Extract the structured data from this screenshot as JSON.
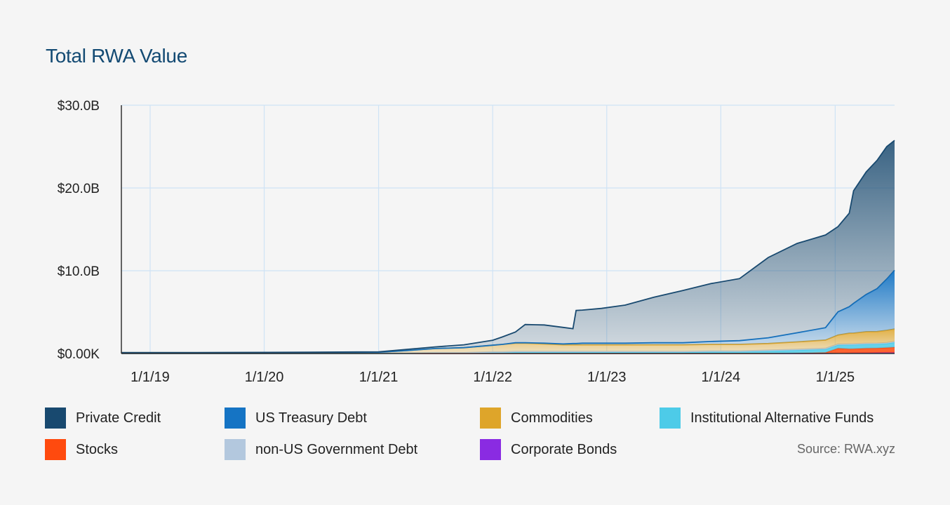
{
  "chart_data": {
    "type": "area",
    "stacked": true,
    "title": "Total RWA Value",
    "y_ticks": [
      "$0.00K",
      "$10.0B",
      "$20.0B",
      "$30.0B"
    ],
    "ylim": [
      0,
      30
    ],
    "y_unit": "B USD",
    "x_ticks": [
      "1/1/19",
      "1/1/20",
      "1/1/21",
      "1/1/22",
      "1/1/23",
      "1/1/24",
      "1/1/25"
    ],
    "xlim": [
      "2018-10-01",
      "2025-07-10"
    ],
    "grid": true,
    "legend_position": "bottom",
    "x": [
      "2018-10-01",
      "2019-06-01",
      "2020-06-01",
      "2021-01-01",
      "2021-04-01",
      "2021-07-01",
      "2021-10-01",
      "2022-01-01",
      "2022-02-01",
      "2022-03-15",
      "2022-04-15",
      "2022-06-15",
      "2022-08-15",
      "2022-09-15",
      "2022-09-25",
      "2022-10-15",
      "2022-12-15",
      "2023-03-01",
      "2023-06-01",
      "2023-09-01",
      "2023-12-01",
      "2024-03-01",
      "2024-06-01",
      "2024-09-01",
      "2024-12-01",
      "2025-01-10",
      "2025-02-15",
      "2025-03-01",
      "2025-04-10",
      "2025-05-15",
      "2025-06-15",
      "2025-07-10"
    ],
    "series": [
      {
        "name": "Corporate Bonds",
        "color": "#8a2be2",
        "values": [
          0,
          0,
          0,
          0,
          0,
          0,
          0,
          0,
          0,
          0,
          0,
          0,
          0,
          0,
          0,
          0,
          0,
          0,
          0,
          0,
          0,
          0,
          0,
          0,
          0.02,
          0.03,
          0.05,
          0.06,
          0.08,
          0.09,
          0.1,
          0.1
        ]
      },
      {
        "name": "Stocks",
        "color": "#ff4a0e",
        "values": [
          0,
          0,
          0,
          0,
          0,
          0,
          0,
          0,
          0,
          0,
          0,
          0,
          0,
          0,
          0,
          0,
          0,
          0,
          0,
          0,
          0,
          0,
          0,
          0.05,
          0.1,
          0.6,
          0.5,
          0.5,
          0.55,
          0.55,
          0.6,
          0.65
        ]
      },
      {
        "name": "Institutional Alternative Funds",
        "color": "#4dcbe8",
        "values": [
          0,
          0,
          0,
          0,
          0,
          0.05,
          0.05,
          0.1,
          0.1,
          0.15,
          0.15,
          0.15,
          0.15,
          0.15,
          0.15,
          0.15,
          0.15,
          0.15,
          0.15,
          0.15,
          0.2,
          0.2,
          0.3,
          0.35,
          0.4,
          0.4,
          0.5,
          0.5,
          0.5,
          0.5,
          0.5,
          0.6
        ]
      },
      {
        "name": "non-US Government Debt",
        "color": "#b3c8de",
        "values": [
          0.05,
          0.05,
          0.05,
          0.05,
          0.05,
          0.05,
          0.05,
          0.1,
          0.1,
          0.1,
          0.1,
          0.1,
          0.1,
          0.1,
          0.1,
          0.1,
          0.1,
          0.1,
          0.1,
          0.1,
          0.1,
          0.1,
          0.1,
          0.1,
          0.1,
          0.1,
          0.1,
          0.1,
          0.1,
          0.1,
          0.1,
          0.1
        ]
      },
      {
        "name": "Commodities",
        "color": "#dea52a",
        "values": [
          0.05,
          0.05,
          0.08,
          0.1,
          0.3,
          0.5,
          0.6,
          0.8,
          0.9,
          1.0,
          1.0,
          0.9,
          0.8,
          0.8,
          0.8,
          0.8,
          0.8,
          0.8,
          0.8,
          0.8,
          0.8,
          0.8,
          0.8,
          0.9,
          1.0,
          1.1,
          1.3,
          1.3,
          1.4,
          1.4,
          1.5,
          1.5
        ]
      },
      {
        "name": "US Treasury Debt",
        "color": "#1574c4",
        "values": [
          0,
          0,
          0,
          0,
          0,
          0,
          0,
          0,
          0,
          0.05,
          0.05,
          0.1,
          0.1,
          0.15,
          0.15,
          0.2,
          0.2,
          0.2,
          0.25,
          0.25,
          0.35,
          0.45,
          0.7,
          1.1,
          1.5,
          2.8,
          3.2,
          3.6,
          4.5,
          5.2,
          6.2,
          7.1
        ]
      },
      {
        "name": "Private Credit",
        "color": "#18496f",
        "values": [
          0,
          0,
          0.02,
          0.05,
          0.15,
          0.2,
          0.35,
          0.6,
          0.9,
          1.3,
          2.2,
          2.2,
          2.0,
          1.8,
          4.0,
          4.0,
          4.2,
          4.6,
          5.5,
          6.3,
          7.0,
          7.5,
          9.7,
          10.8,
          11.2,
          10.3,
          11.3,
          13.6,
          14.8,
          15.5,
          16.0,
          15.7
        ]
      }
    ],
    "legend": [
      [
        "Private Credit",
        "#18496f"
      ],
      [
        "US Treasury Debt",
        "#1574c4"
      ],
      [
        "Commodities",
        "#dea52a"
      ],
      [
        "Institutional Alternative Funds",
        "#4dcbe8"
      ],
      [
        "Stocks",
        "#ff4a0e"
      ],
      [
        "non-US Government Debt",
        "#b3c8de"
      ],
      [
        "Corporate Bonds",
        "#8a2be2"
      ]
    ]
  },
  "source": "Source: RWA.xyz"
}
